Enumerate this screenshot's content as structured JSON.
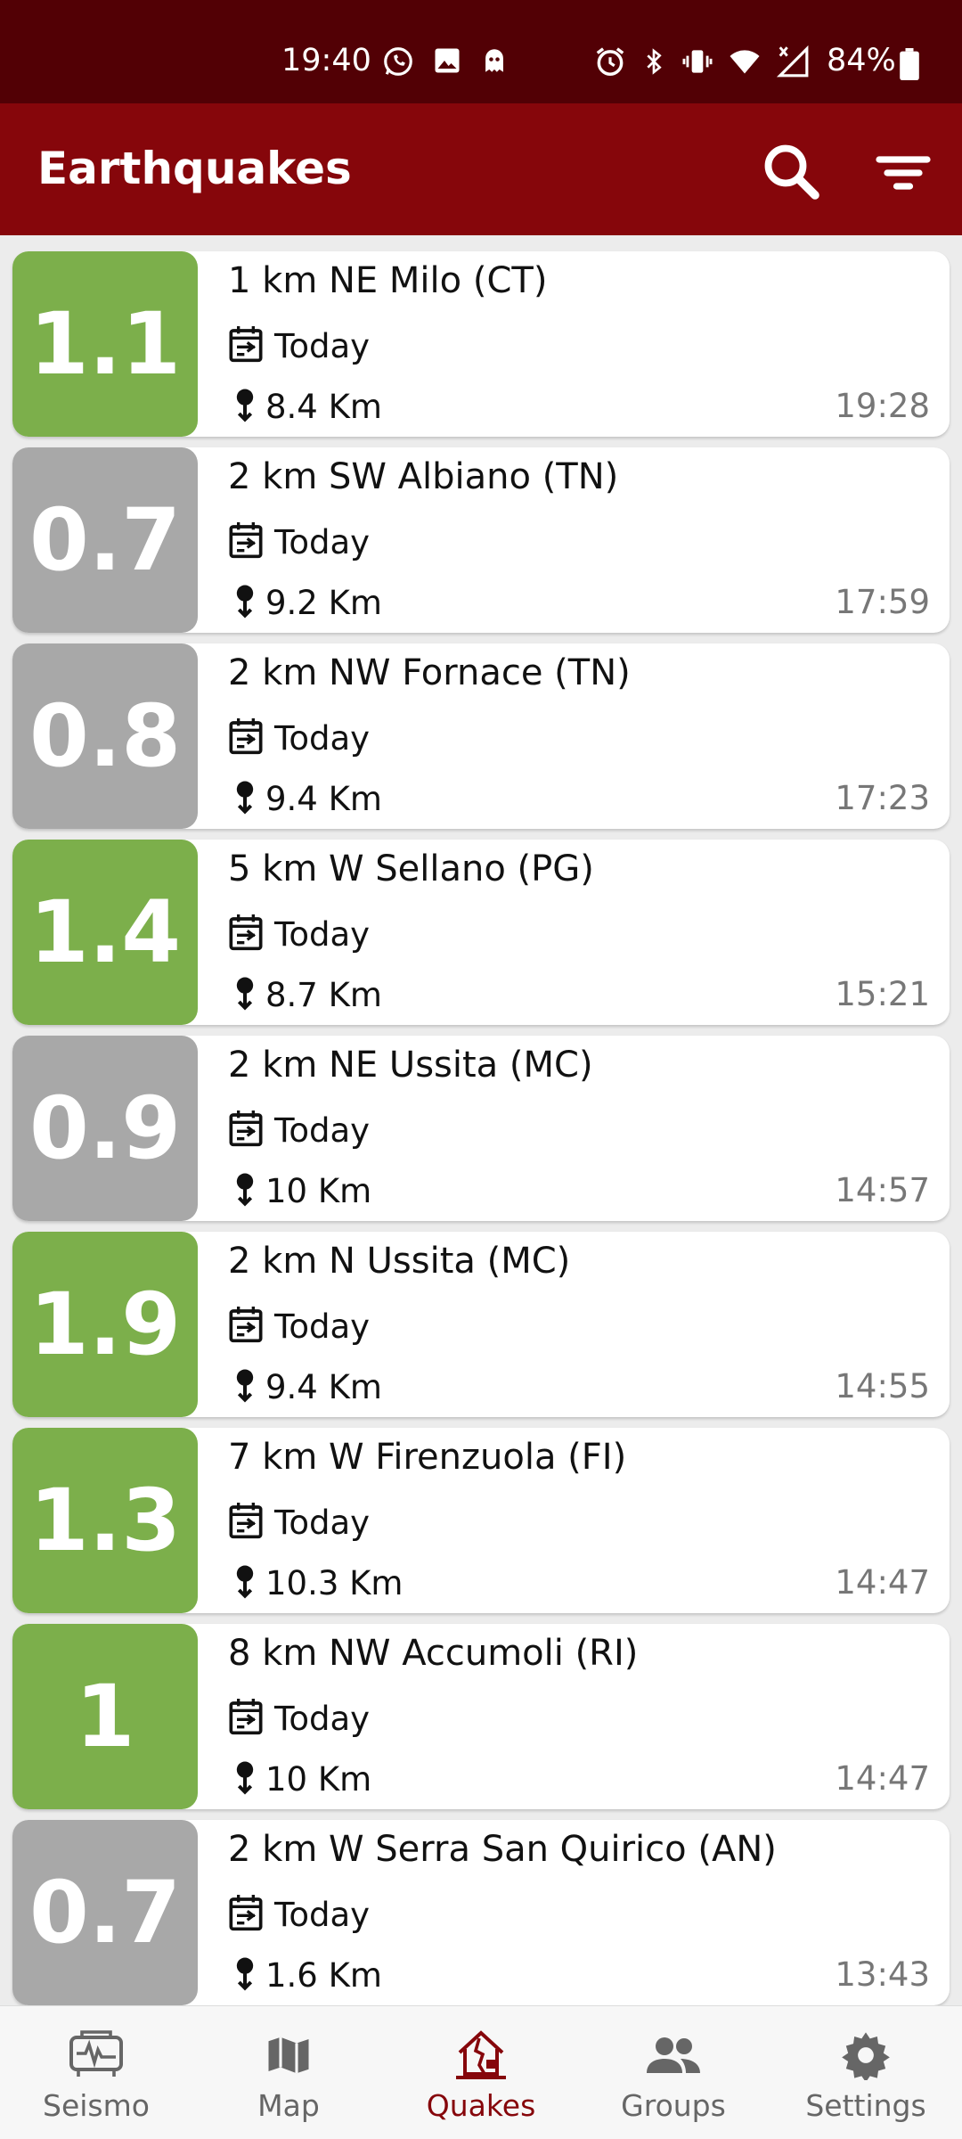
{
  "status_bar": {
    "time": "19:40",
    "battery": "84%"
  },
  "app_bar": {
    "title": "Earthquakes",
    "search_icon": "search-icon",
    "filter_icon": "filter-icon"
  },
  "colors": {
    "green": "#7caf4b",
    "gray": "#a8a8a8",
    "accent": "#86060b"
  },
  "quakes": [
    {
      "magnitude": "1.1",
      "place": "1 km NE Milo (CT)",
      "date": "Today",
      "depth": "8.4 Km",
      "time": "19:28",
      "color": "green"
    },
    {
      "magnitude": "0.7",
      "place": "2 km SW Albiano (TN)",
      "date": "Today",
      "depth": "9.2 Km",
      "time": "17:59",
      "color": "gray"
    },
    {
      "magnitude": "0.8",
      "place": "2 km NW Fornace (TN)",
      "date": "Today",
      "depth": "9.4 Km",
      "time": "17:23",
      "color": "gray"
    },
    {
      "magnitude": "1.4",
      "place": "5 km W Sellano (PG)",
      "date": "Today",
      "depth": "8.7 Km",
      "time": "15:21",
      "color": "green"
    },
    {
      "magnitude": "0.9",
      "place": "2 km NE Ussita (MC)",
      "date": "Today",
      "depth": "10 Km",
      "time": "14:57",
      "color": "gray"
    },
    {
      "magnitude": "1.9",
      "place": "2 km N Ussita (MC)",
      "date": "Today",
      "depth": "9.4 Km",
      "time": "14:55",
      "color": "green"
    },
    {
      "magnitude": "1.3",
      "place": "7 km W Firenzuola (FI)",
      "date": "Today",
      "depth": "10.3 Km",
      "time": "14:47",
      "color": "green"
    },
    {
      "magnitude": "1",
      "place": "8 km NW Accumoli (RI)",
      "date": "Today",
      "depth": "10 Km",
      "time": "14:47",
      "color": "green"
    },
    {
      "magnitude": "0.7",
      "place": "2 km W Serra San Quirico (AN)",
      "date": "Today",
      "depth": "1.6 Km",
      "time": "13:43",
      "color": "gray"
    }
  ],
  "nav": [
    {
      "label": "Seismo",
      "icon": "seismograph-icon"
    },
    {
      "label": "Map",
      "icon": "map-icon"
    },
    {
      "label": "Quakes",
      "icon": "house-quake-icon",
      "active": true
    },
    {
      "label": "Groups",
      "icon": "groups-icon"
    },
    {
      "label": "Settings",
      "icon": "gear-icon"
    }
  ]
}
